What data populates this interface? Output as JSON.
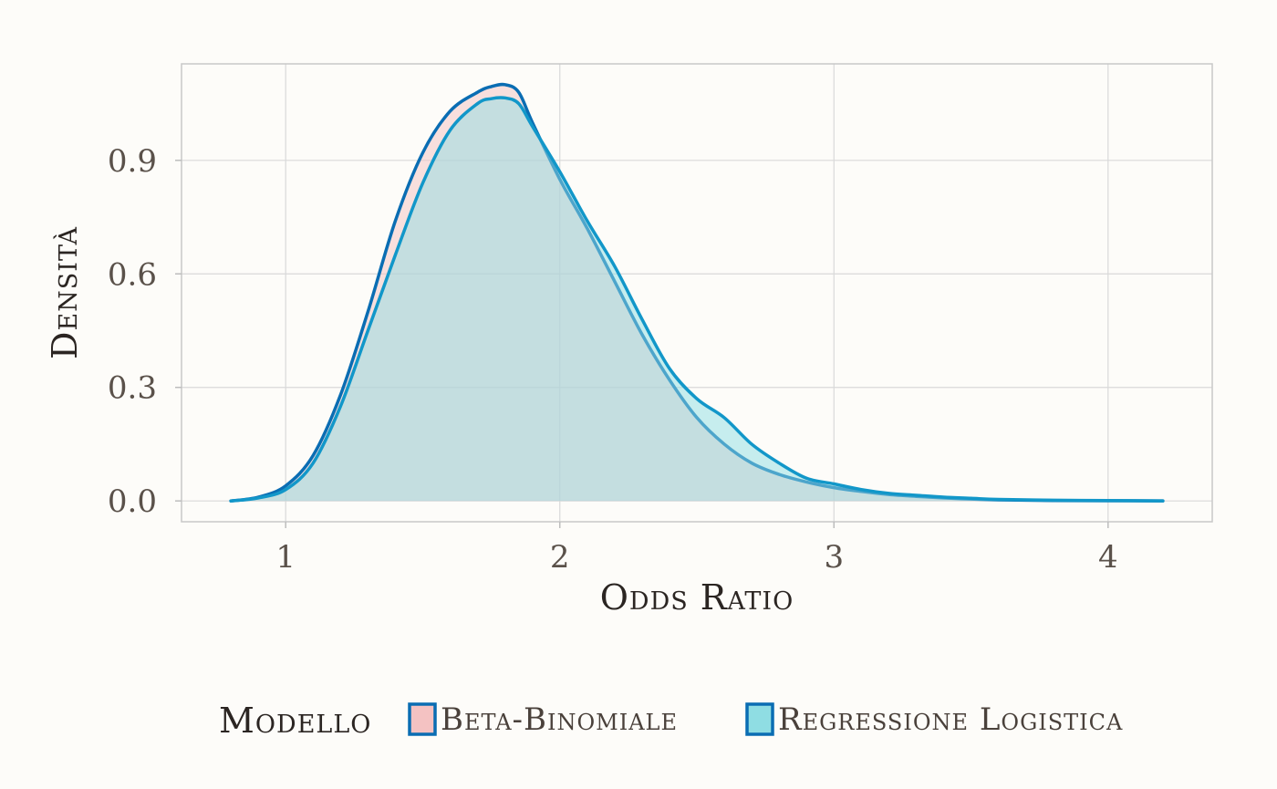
{
  "chart_data": {
    "type": "area",
    "xlabel": "Odds Ratio",
    "ylabel": "Densità",
    "xlim": [
      0.62,
      4.38
    ],
    "ylim": [
      -0.055,
      1.155
    ],
    "x_ticks": [
      "1",
      "2",
      "3",
      "4"
    ],
    "x_tick_values": [
      1,
      2,
      3,
      4
    ],
    "y_ticks": [
      "0.0",
      "0.3",
      "0.6",
      "0.9"
    ],
    "y_tick_values": [
      0.0,
      0.3,
      0.6,
      0.9
    ],
    "grid": true,
    "legend": {
      "title": "Modello",
      "placement": "bottom"
    },
    "series": [
      {
        "name": "Beta-Binomiale",
        "fill": "#f4c2c2",
        "stroke": "#0a6db3",
        "x": [
          0.8,
          0.9,
          1.0,
          1.1,
          1.2,
          1.3,
          1.4,
          1.5,
          1.6,
          1.7,
          1.75,
          1.8,
          1.85,
          1.9,
          2.0,
          2.1,
          2.2,
          2.3,
          2.4,
          2.5,
          2.6,
          2.7,
          2.8,
          2.9,
          3.0,
          3.1,
          3.2,
          3.3,
          3.4,
          3.5,
          3.6,
          3.8,
          4.0,
          4.2
        ],
        "values": [
          0.0,
          0.01,
          0.04,
          0.12,
          0.28,
          0.5,
          0.74,
          0.92,
          1.03,
          1.08,
          1.095,
          1.1,
          1.08,
          1.0,
          0.85,
          0.72,
          0.58,
          0.44,
          0.32,
          0.22,
          0.15,
          0.1,
          0.07,
          0.05,
          0.035,
          0.025,
          0.017,
          0.012,
          0.008,
          0.005,
          0.003,
          0.001,
          0.0005,
          0.0
        ]
      },
      {
        "name": "Regressione Logistica",
        "fill": "#8fdde3",
        "stroke": "#1297c9",
        "x": [
          0.8,
          0.9,
          1.0,
          1.1,
          1.2,
          1.3,
          1.4,
          1.5,
          1.6,
          1.7,
          1.75,
          1.8,
          1.85,
          1.9,
          2.0,
          2.1,
          2.2,
          2.3,
          2.4,
          2.5,
          2.6,
          2.7,
          2.8,
          2.9,
          3.0,
          3.1,
          3.2,
          3.3,
          3.4,
          3.5,
          3.6,
          3.8,
          4.0,
          4.2
        ],
        "values": [
          0.0,
          0.008,
          0.03,
          0.1,
          0.25,
          0.45,
          0.65,
          0.84,
          0.98,
          1.05,
          1.063,
          1.065,
          1.05,
          0.99,
          0.87,
          0.74,
          0.62,
          0.48,
          0.35,
          0.27,
          0.22,
          0.15,
          0.1,
          0.06,
          0.045,
          0.03,
          0.02,
          0.015,
          0.01,
          0.007,
          0.004,
          0.002,
          0.001,
          0.0
        ]
      }
    ]
  }
}
